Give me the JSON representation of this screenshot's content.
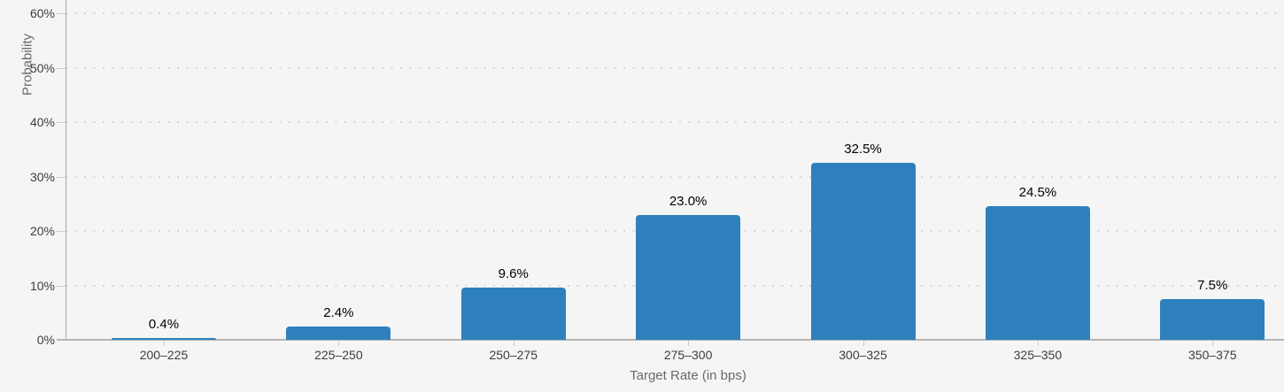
{
  "chart_data": {
    "type": "bar",
    "title": "",
    "categories": [
      "200–225",
      "225–250",
      "250–275",
      "275–300",
      "300–325",
      "325–350",
      "350–375"
    ],
    "values": [
      0.4,
      2.4,
      9.6,
      23.0,
      32.5,
      24.5,
      7.5
    ],
    "value_labels": [
      "0.4%",
      "2.4%",
      "9.6%",
      "23.0%",
      "32.5%",
      "24.5%",
      "7.5%"
    ],
    "xlabel": "Target Rate (in bps)",
    "ylabel": "Probability",
    "yticks": [
      0,
      10,
      20,
      30,
      40,
      50,
      60
    ],
    "ytick_labels": [
      "0%",
      "10%",
      "20%",
      "30%",
      "40%",
      "50%",
      "60%"
    ],
    "ylim": [
      0,
      65
    ],
    "grid": "dotted-horizontal",
    "legend": "none",
    "colors": {
      "bar": "#2e80bd",
      "background": "#f5f5f5",
      "grid_dot": "#d6d6d6",
      "axis_line": "#b5b5b5",
      "tick_label": "#3d3d3d",
      "value_label": "#000000",
      "axis_title": "#6a6a6a"
    }
  }
}
